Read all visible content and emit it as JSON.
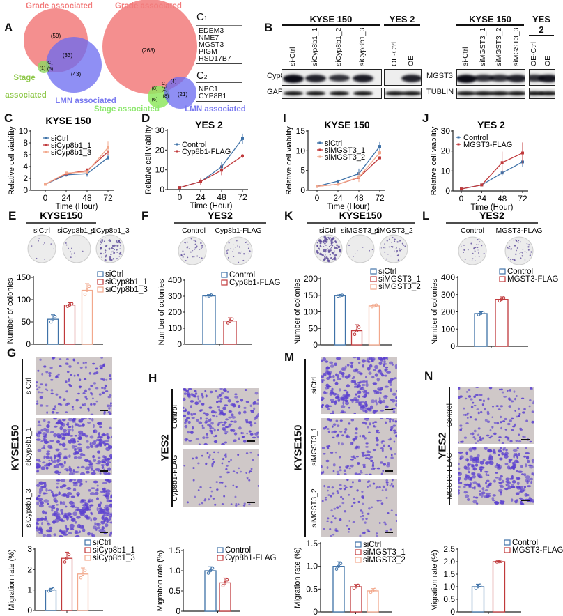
{
  "panel_labels": {
    "A": "A",
    "B": "B",
    "C": "C",
    "D": "D",
    "E": "E",
    "F": "F",
    "G": "G",
    "H": "H",
    "I": "I",
    "J": "J",
    "K": "K",
    "L": "L",
    "M": "M",
    "N": "N"
  },
  "venn": {
    "left": {
      "grade": "Grade associated",
      "stage_1": "Stage",
      "stage_2": "associated",
      "lmn": "LMN associated",
      "counts": {
        "grade_only": "(59)",
        "grade_lmn": "(33)",
        "stage_only": "(1)",
        "center_label": "C₁",
        "center": "(5)",
        "lmn_only": "(43)"
      }
    },
    "right": {
      "grade": "Grade associated",
      "stage": "Stage associated",
      "lmn": "LMN associated",
      "counts": {
        "grade_only": "(268)",
        "grade_stage": "(8)",
        "center_label": "C₂",
        "center": "(2)",
        "grade_lmn": "(4)",
        "stage_only": "(6)",
        "stage_lmn": "(8)",
        "lmn_only": "(21)"
      }
    },
    "colors": {
      "grade": "#f27b7b",
      "stage": "#8fd860",
      "lmn": "#7a7af0"
    }
  },
  "gene_table": {
    "c1": "C",
    "c1_sub": "1",
    "c1_genes": [
      "EDEM3",
      "NME7",
      "MGST3",
      "PIGM",
      "HSD17B7"
    ],
    "c2": "C",
    "c2_sub": "2",
    "c2_genes": [
      "NPC1",
      "CYP8B1"
    ]
  },
  "blots": {
    "left": {
      "group1": "KYSE 150",
      "group2": "YES 2",
      "lanes": [
        "si-Ctrl",
        "siCyp8b1_1",
        "siCyp8b1_2",
        "siCyp8b1_3",
        "OE-Ctrl",
        "OE"
      ],
      "target": "Cyp8b1",
      "loading": "GAPDH",
      "target_intensity": [
        1.0,
        0.8,
        0.65,
        0.85,
        0.0,
        0.8
      ]
    },
    "right": {
      "group1": "KYSE 150",
      "group2": "YES 2",
      "lanes": [
        "si-Ctrl",
        "siMGST3_1",
        "siMGST3_2",
        "siMGST3_3",
        "OE-Ctrl",
        "OE"
      ],
      "target": "MGST3",
      "loading": "TUBLIN",
      "target_intensity": [
        1.0,
        0.7,
        0.7,
        0.8,
        0.7,
        0.9
      ]
    }
  },
  "colonies": {
    "E": {
      "cell": "KYSE150",
      "conditions": [
        "siCtrl",
        "siCyp8b1_1",
        "siCyp8b1_3"
      ]
    },
    "F": {
      "cell": "YES2",
      "conditions": [
        "Control",
        "Cyp8b1-FLAG"
      ]
    },
    "K": {
      "cell": "KYSE150",
      "conditions": [
        "siCtrl",
        "siMGST3_1",
        "siMGST3_2"
      ]
    },
    "L": {
      "cell": "YES2",
      "conditions": [
        "Control",
        "MGST3-FLAG"
      ]
    }
  },
  "migration": {
    "G": {
      "cell": "KYSE150",
      "conditions": [
        "siCtrl",
        "siCyp8b1_1",
        "siCyp8b1_3"
      ]
    },
    "H": {
      "cell": "YES2",
      "conditions": [
        "Control",
        "Cyp8b1-FLAG"
      ]
    },
    "M": {
      "cell": "KYSE150",
      "conditions": [
        "siCtrl",
        "siMGST3_1",
        "siMGST3_2"
      ]
    },
    "N": {
      "cell": "YES2",
      "conditions": [
        "Control",
        "MGST3-FLAG"
      ]
    }
  },
  "colors": {
    "blue": "#3f72a8",
    "red": "#c0393b",
    "pale": "#f2a88c"
  },
  "chart_data": [
    {
      "id": "C",
      "type": "line",
      "title": "KYSE 150",
      "xlabel": "Time (Hour)",
      "ylabel": "Relative cell viability",
      "x": [
        0,
        24,
        48,
        72
      ],
      "xticks": [
        "0",
        "24",
        "48",
        "72"
      ],
      "ylim": [
        0,
        10
      ],
      "yticks": [
        "0",
        "2",
        "4",
        "6",
        "8",
        "10"
      ],
      "legend": "top-left",
      "series": [
        {
          "name": "siCtrl",
          "color": "blue",
          "values": [
            1,
            2.6,
            2.8,
            5.5
          ],
          "err": [
            0.1,
            0.3,
            0.5,
            0.4
          ]
        },
        {
          "name": "siCyp8b1_1",
          "color": "red",
          "values": [
            1,
            2.8,
            3.3,
            6.5
          ],
          "err": [
            0.1,
            0.2,
            0.4,
            0.5
          ]
        },
        {
          "name": "siCyp8b1_3",
          "color": "pale",
          "values": [
            1,
            2.9,
            3.1,
            7.2
          ],
          "err": [
            0.1,
            0.2,
            0.3,
            1.0
          ]
        }
      ]
    },
    {
      "id": "D",
      "type": "line",
      "title": "YES 2",
      "xlabel": "Time (Hour)",
      "ylabel": "Relative cell viability",
      "x": [
        0,
        24,
        48,
        72
      ],
      "xticks": [
        "0",
        "24",
        "48",
        "72"
      ],
      "ylim": [
        0,
        30
      ],
      "yticks": [
        "0",
        "10",
        "20",
        "30"
      ],
      "legend": "top-left",
      "series": [
        {
          "name": "Control",
          "color": "blue",
          "values": [
            1,
            4,
            11.5,
            25.8
          ],
          "err": [
            0.3,
            1.5,
            2.5,
            2.5
          ]
        },
        {
          "name": "Cyp8b1-FLAG",
          "color": "red",
          "values": [
            1,
            4,
            9.8,
            17
          ],
          "err": [
            0.3,
            1.5,
            2.5,
            1.0
          ]
        }
      ]
    },
    {
      "id": "I",
      "type": "line",
      "title": "KYSE 150",
      "xlabel": "Time (Hour)",
      "ylabel": "Relative cell viability",
      "x": [
        0,
        24,
        48,
        72
      ],
      "xticks": [
        "0",
        "24",
        "48",
        "72"
      ],
      "ylim": [
        0,
        15
      ],
      "yticks": [
        "0",
        "5",
        "10",
        "15"
      ],
      "legend": "top-left",
      "series": [
        {
          "name": "siCtrl",
          "color": "blue",
          "values": [
            1,
            2.3,
            4.2,
            11.1
          ],
          "err": [
            0.2,
            0.2,
            1.3,
            1.1
          ]
        },
        {
          "name": "siMGST3_1",
          "color": "red",
          "values": [
            1,
            1.5,
            3.2,
            8.2
          ],
          "err": [
            0.2,
            0.2,
            0.5,
            0.4
          ]
        },
        {
          "name": "siMGST3_2",
          "color": "pale",
          "values": [
            1,
            1.5,
            3.3,
            9.5
          ],
          "err": [
            0.2,
            0.2,
            1.2,
            0.6
          ]
        }
      ]
    },
    {
      "id": "J",
      "type": "line",
      "title": "YES 2",
      "xlabel": "Time (Hour)",
      "ylabel": "Relative cell viability",
      "x": [
        0,
        24,
        48,
        72
      ],
      "xticks": [
        "0",
        "24",
        "48",
        "72"
      ],
      "ylim": [
        0,
        30
      ],
      "yticks": [
        "0",
        "10",
        "20",
        "30"
      ],
      "legend": "top-left",
      "series": [
        {
          "name": "Control",
          "color": "blue",
          "values": [
            1,
            3,
            9,
            14.5
          ],
          "err": [
            0.2,
            0.3,
            1.5,
            2.5
          ]
        },
        {
          "name": "MGST3-FLAG",
          "color": "red",
          "values": [
            1,
            3,
            14.2,
            19
          ],
          "err": [
            0.2,
            0.3,
            5.5,
            5.3
          ]
        }
      ]
    },
    {
      "id": "E",
      "type": "bar",
      "ylabel": "Number of colonies",
      "ylim": [
        0,
        150
      ],
      "yticks": [
        "0",
        "50",
        "100",
        "150"
      ],
      "legend": "top-right",
      "series": [
        {
          "name": "siCtrl",
          "color": "blue",
          "value": 56,
          "err": 10
        },
        {
          "name": "siCyp8b1_1",
          "color": "red",
          "value": 88,
          "err": 5
        },
        {
          "name": "siCyp8b1_3",
          "color": "pale",
          "value": 121,
          "err": 15
        }
      ]
    },
    {
      "id": "F",
      "type": "bar",
      "ylabel": "Number of colonies",
      "ylim": [
        0,
        400
      ],
      "yticks": [
        "0",
        "100",
        "200",
        "300",
        "400"
      ],
      "legend": "top-right",
      "series": [
        {
          "name": "Control",
          "color": "blue",
          "value": 302,
          "err": 8
        },
        {
          "name": "Cyp8b1-FLAG",
          "color": "red",
          "value": 145,
          "err": 20
        }
      ]
    },
    {
      "id": "K",
      "type": "bar",
      "ylabel": "Number of colonies",
      "ylim": [
        0,
        200
      ],
      "yticks": [
        "0",
        "50",
        "100",
        "150",
        "200"
      ],
      "legend": "top-right",
      "series": [
        {
          "name": "siCtrl",
          "color": "blue",
          "value": 149,
          "err": 2
        },
        {
          "name": "siMGST3_1",
          "color": "red",
          "value": 43,
          "err": 18
        },
        {
          "name": "siMGST3_2",
          "color": "pale",
          "value": 118,
          "err": 4
        }
      ]
    },
    {
      "id": "L",
      "type": "bar",
      "ylabel": "Number of colonies",
      "ylim": [
        0,
        400
      ],
      "yticks": [
        "0",
        "100",
        "200",
        "300",
        "400"
      ],
      "legend": "top-right",
      "series": [
        {
          "name": "Control",
          "color": "blue",
          "value": 190,
          "err": 10
        },
        {
          "name": "MGST3-FLAG",
          "color": "red",
          "value": 272,
          "err": 15
        }
      ]
    },
    {
      "id": "G",
      "type": "bar",
      "ylabel": "Migration rate (%)",
      "ylim": [
        0,
        3
      ],
      "yticks": [
        "0",
        "1",
        "2",
        "3"
      ],
      "legend": "top-right",
      "series": [
        {
          "name": "siCtrl",
          "color": "blue",
          "value": 1.0,
          "err": 0.08
        },
        {
          "name": "siCyp8b1_1",
          "color": "red",
          "value": 2.55,
          "err": 0.3
        },
        {
          "name": "siCyp8b1_3",
          "color": "pale",
          "value": 1.78,
          "err": 0.3
        }
      ]
    },
    {
      "id": "H",
      "type": "bar",
      "ylabel": "Migration rate (%)",
      "ylim": [
        0,
        1.5
      ],
      "yticks": [
        "0",
        "0.5",
        "1.0",
        "1.5"
      ],
      "legend": "top-right",
      "series": [
        {
          "name": "Control",
          "color": "blue",
          "value": 1.0,
          "err": 0.1
        },
        {
          "name": "Cyp8b1-FLAG",
          "color": "red",
          "value": 0.7,
          "err": 0.12
        }
      ]
    },
    {
      "id": "M",
      "type": "bar",
      "ylabel": "Migration rate (%)",
      "ylim": [
        0,
        1.5
      ],
      "yticks": [
        "0",
        "0.5",
        "1.0",
        "1.5"
      ],
      "legend": "top-right",
      "series": [
        {
          "name": "siCtrl",
          "color": "blue",
          "value": 1.0,
          "err": 0.1
        },
        {
          "name": "siMGST3_1",
          "color": "red",
          "value": 0.55,
          "err": 0.05
        },
        {
          "name": "siMGST3_2",
          "color": "pale",
          "value": 0.46,
          "err": 0.05
        }
      ]
    },
    {
      "id": "N",
      "type": "bar",
      "ylabel": "Migration rate (%)",
      "ylim": [
        0,
        2.5
      ],
      "yticks": [
        "0",
        "0.5",
        "1.0",
        "1.5",
        "2.0",
        "2.5"
      ],
      "legend": "top-right",
      "series": [
        {
          "name": "Control",
          "color": "blue",
          "value": 1.0,
          "err": 0.1
        },
        {
          "name": "MGST3-FLAG",
          "color": "red",
          "value": 2.0,
          "err": 0.02
        }
      ]
    }
  ]
}
